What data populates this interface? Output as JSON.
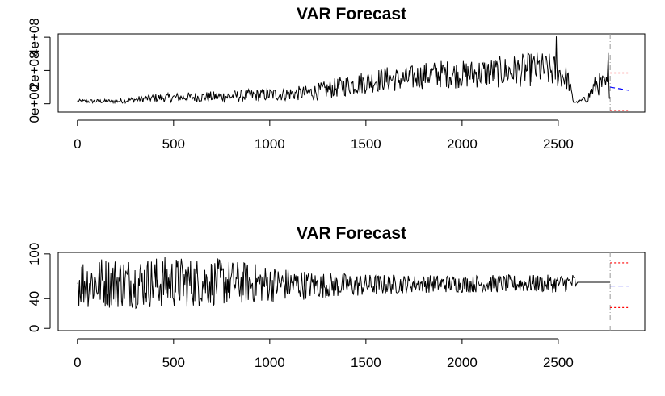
{
  "chart_data": [
    {
      "type": "line",
      "title": "VAR Forecast",
      "xlabel": "",
      "ylabel": "",
      "xlim": [
        -100,
        2950
      ],
      "ylim": [
        -50000000,
        420000000
      ],
      "x_ticks": [
        0,
        500,
        1000,
        1500,
        2000,
        2500
      ],
      "x_tick_labels": [
        "0",
        "500",
        "1000",
        "1500",
        "2000",
        "2500"
      ],
      "y_ticks": [
        0,
        200000000,
        400000000
      ],
      "y_tick_labels": [
        "0e+00",
        "2e+08",
        "4e+08"
      ],
      "grid": false,
      "history_end_x": 2770,
      "forecast_end_x": 2870,
      "observed": {
        "color": "#000000",
        "x": [
          0,
          200,
          400,
          600,
          800,
          1000,
          1200,
          1300,
          1400,
          1500,
          1600,
          1700,
          1800,
          1900,
          2000,
          2100,
          2200,
          2300,
          2400,
          2450,
          2490,
          2550,
          2580,
          2600,
          2650,
          2700,
          2770
        ],
        "y": [
          15000000,
          15000000,
          35000000,
          40000000,
          45000000,
          55000000,
          65000000,
          85000000,
          110000000,
          130000000,
          150000000,
          145000000,
          170000000,
          180000000,
          175000000,
          185000000,
          190000000,
          200000000,
          210000000,
          200000000,
          195000000,
          150000000,
          10000000,
          10000000,
          30000000,
          120000000,
          100000000
        ],
        "spread": [
          12000000,
          12000000,
          25000000,
          30000000,
          35000000,
          40000000,
          45000000,
          55000000,
          65000000,
          70000000,
          75000000,
          75000000,
          80000000,
          85000000,
          85000000,
          90000000,
          95000000,
          100000000,
          105000000,
          105000000,
          100000000,
          70000000,
          5000000,
          5000000,
          25000000,
          70000000,
          70000000
        ],
        "peaks": [
          {
            "x": 2490,
            "y": 405000000
          },
          {
            "x": 2760,
            "y": 305000000
          }
        ]
      },
      "forecast": {
        "x": [
          2770,
          2870
        ],
        "mean": [
          100000000,
          80000000
        ],
        "lower": [
          -40000000
        ],
        "upper": [
          185000000
        ],
        "mean_color": "#0000ff",
        "interval_color": "#ff0000",
        "separator_color": "#999999"
      }
    },
    {
      "type": "line",
      "title": "VAR Forecast",
      "xlabel": "",
      "ylabel": "",
      "xlim": [
        -100,
        2950
      ],
      "ylim": [
        -3,
        102
      ],
      "x_ticks": [
        0,
        500,
        1000,
        1500,
        2000,
        2500
      ],
      "x_tick_labels": [
        "0",
        "500",
        "1000",
        "1500",
        "2000",
        "2500"
      ],
      "y_ticks": [
        0,
        40,
        100
      ],
      "y_tick_labels": [
        "0",
        "40",
        "100"
      ],
      "grid": false,
      "history_end_x": 2770,
      "forecast_end_x": 2870,
      "observed": {
        "color": "#000000",
        "x": [
          0,
          250,
          500,
          750,
          1000,
          1250,
          1500,
          1750,
          2000,
          2250,
          2500,
          2590
        ],
        "y": [
          62,
          62,
          62,
          62,
          60,
          58,
          58,
          60,
          60,
          60,
          60,
          62
        ],
        "spread": [
          35,
          35,
          35,
          32,
          25,
          18,
          15,
          12,
          12,
          12,
          12,
          12
        ],
        "flat": {
          "x": [
            2600,
            2770
          ],
          "y": 62
        }
      },
      "forecast": {
        "x": [
          2770,
          2870
        ],
        "mean": [
          57,
          57
        ],
        "lower": [
          28
        ],
        "upper": [
          88
        ],
        "mean_color": "#0000ff",
        "interval_color": "#ff0000",
        "separator_color": "#999999"
      }
    }
  ]
}
